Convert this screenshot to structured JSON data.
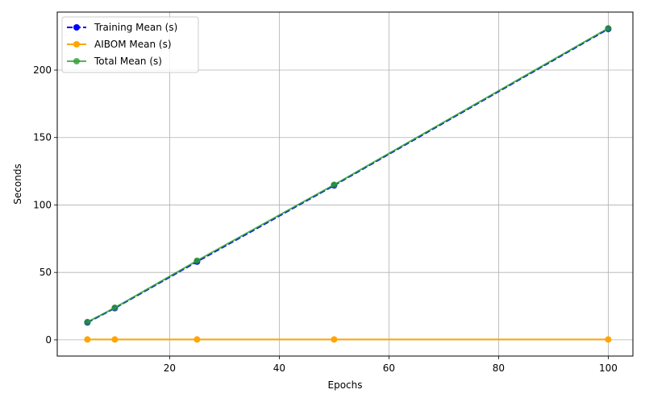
{
  "chart_data": {
    "type": "line",
    "title": "",
    "xlabel": "Epochs",
    "ylabel": "Seconds",
    "x": [
      5,
      10,
      25,
      50,
      100
    ],
    "xlim": [
      -0.5,
      104.5
    ],
    "ylim": [
      -12,
      243
    ],
    "xticks": [
      20,
      40,
      60,
      80,
      100
    ],
    "yticks": [
      0,
      50,
      100,
      150,
      200
    ],
    "grid": true,
    "legend_position": "upper-left",
    "series": [
      {
        "name": "Training Mean (s)",
        "values": [
          12.9,
          23.5,
          58.0,
          114.5,
          230.5
        ],
        "color": "#0000ff",
        "linestyle": "dashed",
        "marker": "circle"
      },
      {
        "name": "AIBOM Mean (s)",
        "values": [
          0.3,
          0.3,
          0.3,
          0.3,
          0.3
        ],
        "color": "#ffa500",
        "linestyle": "solid",
        "marker": "circle"
      },
      {
        "name": "Total Mean (s)",
        "values": [
          13.2,
          23.8,
          58.7,
          115.0,
          231.0
        ],
        "color": "#2ca02c",
        "linestyle": "solid",
        "marker": "circle"
      }
    ]
  }
}
